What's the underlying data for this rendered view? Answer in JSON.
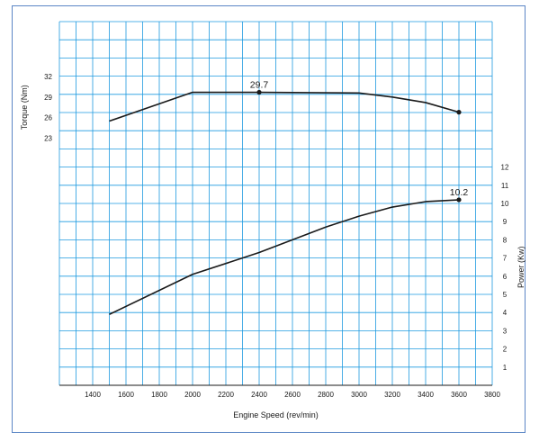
{
  "chart_data": {
    "type": "line",
    "title": "",
    "xlabel": "Engine Speed (rev/min)",
    "xlim": [
      1200,
      3800
    ],
    "xticks": [
      1400,
      1600,
      1800,
      2000,
      2200,
      2400,
      2600,
      2800,
      3000,
      3200,
      3400,
      3600,
      3800
    ],
    "grid": true,
    "grid_color": "#1e9ae0",
    "line_color": "#1a1a1a",
    "frame_color": "#5b86c5",
    "y_left": {
      "label": "Torque (Nm)",
      "range": [
        -13,
        40
      ],
      "ticks": [
        23,
        26,
        29,
        32
      ]
    },
    "y_right": {
      "label": "Power (Kw)",
      "range": [
        0,
        20
      ],
      "ticks": [
        1,
        2,
        3,
        4,
        5,
        6,
        7,
        8,
        9,
        10,
        11,
        12
      ]
    },
    "series": [
      {
        "axis": "left",
        "x": [
          1500,
          2000,
          2400,
          3000,
          3200,
          3400,
          3600
        ],
        "y": [
          25.5,
          29.7,
          29.7,
          29.6,
          29.0,
          28.2,
          26.8
        ],
        "markers": [
          {
            "x": 2400,
            "y": 29.7,
            "label": "29.7"
          },
          {
            "x": 3600,
            "y": 26.8,
            "label": ""
          }
        ]
      },
      {
        "axis": "right",
        "x": [
          1500,
          2000,
          2400,
          2800,
          3000,
          3200,
          3400,
          3600
        ],
        "y": [
          3.9,
          6.1,
          7.3,
          8.7,
          9.3,
          9.8,
          10.1,
          10.2
        ],
        "markers": [
          {
            "x": 3600,
            "y": 10.2,
            "label": "10.2"
          }
        ]
      }
    ]
  }
}
